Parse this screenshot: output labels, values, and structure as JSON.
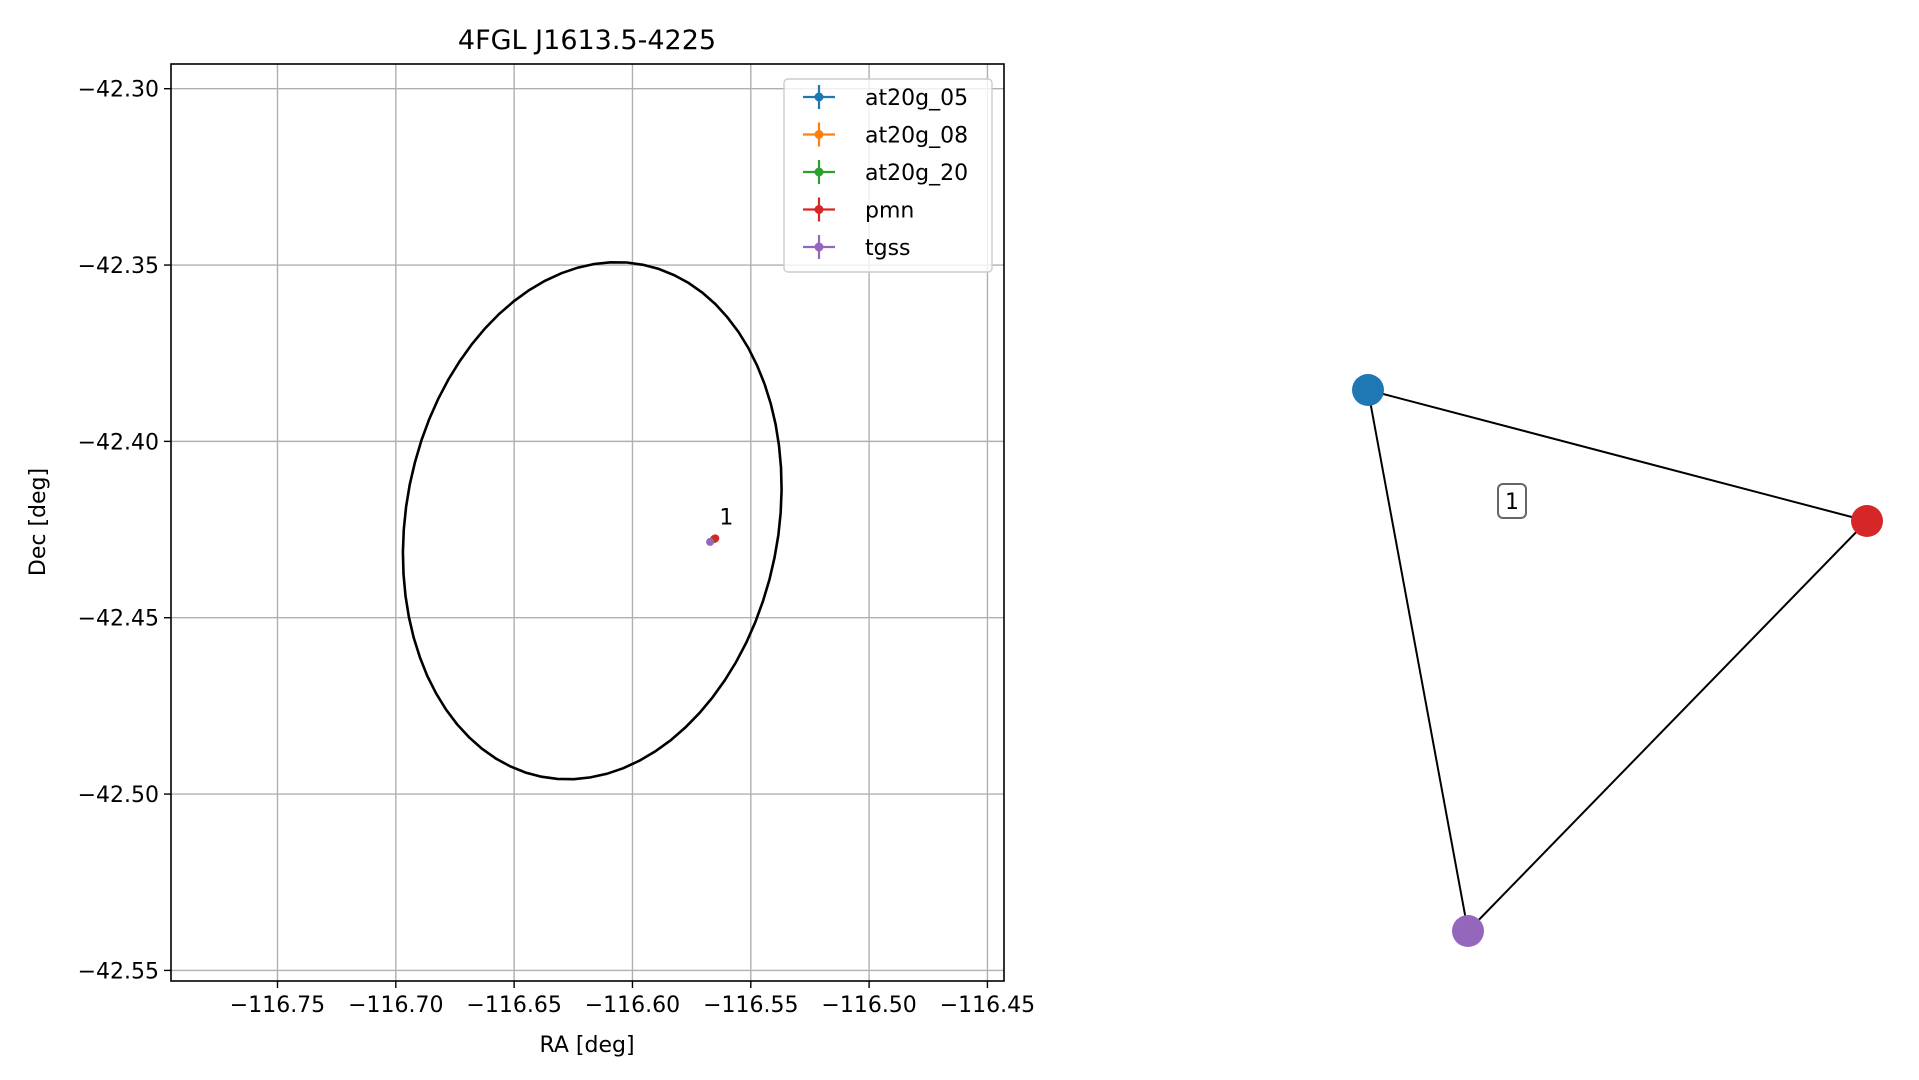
{
  "chart_data": [
    {
      "type": "scatter",
      "title": "4FGL J1613.5-4225",
      "xlabel": "RA [deg]",
      "ylabel": "Dec [deg]",
      "xlim": [
        -116.795,
        -116.443
      ],
      "ylim": [
        -42.553,
        -42.293
      ],
      "grid": true,
      "legend_placement": "upper-right",
      "xticks": [
        -116.75,
        -116.7,
        -116.65,
        -116.6,
        -116.55,
        -116.5,
        -116.45
      ],
      "xtick_labels": [
        "−116.75",
        "−116.70",
        "−116.65",
        "−116.60",
        "−116.55",
        "−116.50",
        "−116.45"
      ],
      "yticks": [
        -42.3,
        -42.35,
        -42.4,
        -42.45,
        -42.5,
        -42.55
      ],
      "ytick_labels": [
        "−42.30",
        "−42.35",
        "−42.40",
        "−42.45",
        "−42.50",
        "−42.55"
      ],
      "ellipse": {
        "center": [
          -116.617,
          -42.4225
        ],
        "semi_major": 0.0825,
        "semi_minor": 0.0705,
        "angle_deg": 28,
        "color": "#000000"
      },
      "series": [
        {
          "name": "at20g_05",
          "color": "#1f77b4",
          "x": [
            -116.5655
          ],
          "y": [
            -42.4277
          ]
        },
        {
          "name": "at20g_08",
          "color": "#ff7f0e",
          "x": [
            -116.5655
          ],
          "y": [
            -42.4277
          ]
        },
        {
          "name": "at20g_20",
          "color": "#2ca02c",
          "x": [
            -116.5655
          ],
          "y": [
            -42.4277
          ]
        },
        {
          "name": "pmn",
          "color": "#d62728",
          "x": [
            -116.565
          ],
          "y": [
            -42.4275
          ]
        },
        {
          "name": "tgss",
          "color": "#9467bd",
          "x": [
            -116.5672
          ],
          "y": [
            -42.4285
          ]
        }
      ],
      "annotations": [
        {
          "text": "1",
          "x": -116.5633,
          "y": -42.4235
        }
      ]
    },
    {
      "type": "network",
      "nodes": [
        {
          "id": "at20g",
          "color": "#1f77b4"
        },
        {
          "id": "pmn",
          "color": "#d62728"
        },
        {
          "id": "tgss",
          "color": "#9467bd"
        }
      ],
      "edges": [
        [
          "at20g",
          "pmn"
        ],
        [
          "at20g",
          "tgss"
        ],
        [
          "pmn",
          "tgss"
        ]
      ],
      "label": "1"
    }
  ]
}
